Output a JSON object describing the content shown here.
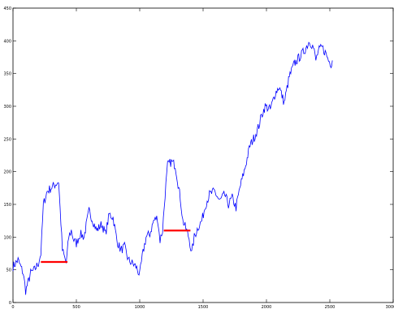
{
  "chart_data": {
    "type": "line",
    "title": "",
    "xlabel": "",
    "ylabel": "",
    "xlim": [
      0,
      3000
    ],
    "ylim": [
      0,
      450
    ],
    "grid": false,
    "x_ticks": [
      "0",
      "500",
      "1000",
      "1500",
      "2000",
      "2500",
      "3000"
    ],
    "y_ticks": [
      "0",
      "50",
      "100",
      "150",
      "200",
      "250",
      "300",
      "350",
      "400",
      "450"
    ],
    "series": [
      {
        "color": "#0000ff",
        "x": [
          0,
          40,
          80,
          100,
          140,
          170,
          200,
          220,
          240,
          270,
          300,
          330,
          360,
          390,
          420,
          440,
          460,
          480,
          500,
          530,
          560,
          600,
          630,
          660,
          700,
          730,
          760,
          790,
          820,
          850,
          880,
          910,
          940,
          970,
          1000,
          1020,
          1050,
          1080,
          1110,
          1140,
          1160,
          1180,
          1200,
          1220,
          1250,
          1280,
          1320,
          1340,
          1370,
          1390,
          1410,
          1430,
          1460,
          1490,
          1520,
          1550,
          1590,
          1630,
          1670,
          1700,
          1730,
          1760,
          1790,
          1830,
          1870,
          1910,
          1940,
          1960,
          1990,
          2030,
          2070,
          2100,
          2140,
          2180,
          2220,
          2260,
          2300,
          2340,
          2370,
          2390,
          2410,
          2440,
          2470,
          2490,
          2510,
          2520
        ],
        "y": [
          55,
          65,
          45,
          18,
          45,
          50,
          60,
          75,
          150,
          170,
          175,
          180,
          185,
          80,
          60,
          100,
          110,
          95,
          90,
          105,
          100,
          140,
          125,
          110,
          120,
          105,
          135,
          130,
          95,
          80,
          85,
          65,
          60,
          55,
          42,
          70,
          100,
          105,
          125,
          130,
          95,
          110,
          165,
          210,
          215,
          210,
          160,
          125,
          110,
          98,
          75,
          100,
          115,
          125,
          150,
          165,
          170,
          155,
          165,
          150,
          160,
          145,
          175,
          205,
          240,
          255,
          270,
          285,
          300,
          295,
          320,
          330,
          305,
          345,
          365,
          375,
          385,
          400,
          390,
          370,
          385,
          390,
          380,
          370,
          365,
          370
        ]
      },
      {
        "color": "#ff0000",
        "segments": [
          {
            "x": [
              220,
              430
            ],
            "y": [
              62,
              62
            ]
          },
          {
            "x": [
              1190,
              1400
            ],
            "y": [
              110,
              110
            ]
          }
        ]
      }
    ]
  }
}
